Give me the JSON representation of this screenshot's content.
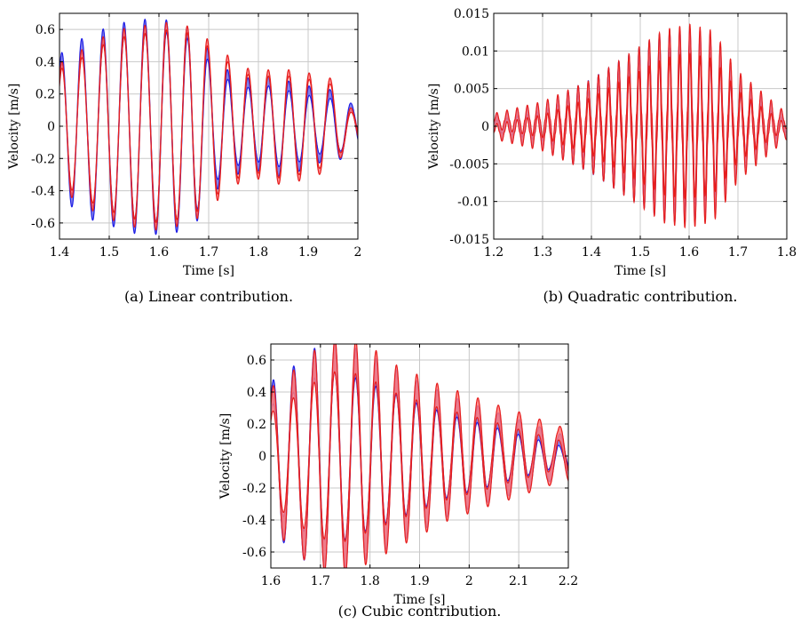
{
  "colors": {
    "blue": "#1f1fe6",
    "blue_fill": "#6f6fe8",
    "red": "#e61f1f",
    "red_fill": "#ff7a7a"
  },
  "chart_data": [
    {
      "type": "area",
      "caption": "(a) Linear contribution.",
      "xlabel": "Time [s]",
      "ylabel": "Velocity [m/s]",
      "xlim": [
        1.4,
        2.0
      ],
      "ylim": [
        -0.7,
        0.7
      ],
      "xticks": [
        1.4,
        1.5,
        1.6,
        1.7,
        1.8,
        1.9,
        2.0
      ],
      "xtick_labels": [
        "1.4",
        "1.5",
        "1.6",
        "1.7",
        "1.8",
        "1.9",
        "2"
      ],
      "yticks": [
        -0.6,
        -0.4,
        -0.2,
        0,
        0.2,
        0.4,
        0.6
      ],
      "ytick_labels": [
        "-0.6",
        "-0.4",
        "-0.2",
        "0",
        "0.2",
        "0.4",
        "0.6"
      ],
      "grid": true,
      "series": [
        {
          "color": "blue",
          "peaks": [
            [
              1.405,
              0.42
            ],
            [
              1.445,
              0.5
            ],
            [
              1.488,
              0.56
            ],
            [
              1.53,
              0.6
            ],
            [
              1.572,
              0.62
            ],
            [
              1.615,
              0.62
            ],
            [
              1.657,
              0.58
            ],
            [
              1.697,
              0.45
            ],
            [
              1.738,
              0.32
            ],
            [
              1.779,
              0.27
            ],
            [
              1.82,
              0.28
            ],
            [
              1.861,
              0.25
            ],
            [
              1.902,
              0.22
            ],
            [
              1.944,
              0.2
            ],
            [
              1.986,
              0.12
            ]
          ],
          "troughs": [
            [
              1.425,
              -0.46
            ],
            [
              1.467,
              -0.54
            ],
            [
              1.509,
              -0.58
            ],
            [
              1.551,
              -0.62
            ],
            [
              1.594,
              -0.63
            ],
            [
              1.636,
              -0.62
            ],
            [
              1.677,
              -0.55
            ],
            [
              1.718,
              -0.36
            ],
            [
              1.759,
              -0.27
            ],
            [
              1.8,
              -0.25
            ],
            [
              1.841,
              -0.28
            ],
            [
              1.882,
              -0.25
            ],
            [
              1.923,
              -0.2
            ],
            [
              1.965,
              -0.18
            ]
          ],
          "band": 0.1
        },
        {
          "color": "red",
          "peaks": [
            [
              1.405,
              0.38
            ],
            [
              1.445,
              0.45
            ],
            [
              1.488,
              0.53
            ],
            [
              1.53,
              0.58
            ],
            [
              1.572,
              0.6
            ],
            [
              1.615,
              0.62
            ],
            [
              1.657,
              0.6
            ],
            [
              1.697,
              0.52
            ],
            [
              1.738,
              0.42
            ],
            [
              1.779,
              0.34
            ],
            [
              1.82,
              0.33
            ],
            [
              1.861,
              0.33
            ],
            [
              1.902,
              0.31
            ],
            [
              1.944,
              0.28
            ],
            [
              1.986,
              0.1
            ]
          ],
          "troughs": [
            [
              1.425,
              -0.42
            ],
            [
              1.467,
              -0.5
            ],
            [
              1.509,
              -0.56
            ],
            [
              1.551,
              -0.6
            ],
            [
              1.594,
              -0.62
            ],
            [
              1.636,
              -0.6
            ],
            [
              1.677,
              -0.55
            ],
            [
              1.718,
              -0.44
            ],
            [
              1.759,
              -0.34
            ],
            [
              1.8,
              -0.31
            ],
            [
              1.841,
              -0.34
            ],
            [
              1.882,
              -0.32
            ],
            [
              1.923,
              -0.28
            ],
            [
              1.965,
              -0.18
            ]
          ],
          "band": 0.06
        }
      ]
    },
    {
      "type": "area",
      "caption": "(b) Quadratic contribution.",
      "xlabel": "Time [s]",
      "ylabel": "Velocity [m/s]",
      "xlim": [
        1.2,
        1.8
      ],
      "ylim": [
        -0.015,
        0.015
      ],
      "xticks": [
        1.2,
        1.3,
        1.4,
        1.5,
        1.6,
        1.7,
        1.8
      ],
      "xtick_labels": [
        "1.2",
        "1.3",
        "1.4",
        "1.5",
        "1.6",
        "1.7",
        "1.8"
      ],
      "yticks": [
        -0.015,
        -0.01,
        -0.005,
        0,
        0.005,
        0.01,
        0.015
      ],
      "ytick_labels": [
        "-0.015",
        "-0.01",
        "-0.005",
        "0",
        "0.005",
        "0.01",
        "0.015"
      ],
      "grid": true,
      "series": [
        {
          "color": "blue",
          "envelope_points": [
            [
              1.2,
              0.0012
            ],
            [
              1.3,
              0.0025
            ],
            [
              1.4,
              0.0055
            ],
            [
              1.5,
              0.0095
            ],
            [
              1.55,
              0.0115
            ],
            [
              1.6,
              0.0118
            ],
            [
              1.65,
              0.0105
            ],
            [
              1.7,
              0.0055
            ],
            [
              1.8,
              0.0012
            ]
          ],
          "period": 0.0208,
          "band": 0.0012
        },
        {
          "color": "red",
          "envelope_points": [
            [
              1.2,
              0.001
            ],
            [
              1.3,
              0.0024
            ],
            [
              1.4,
              0.005
            ],
            [
              1.5,
              0.009
            ],
            [
              1.55,
              0.011
            ],
            [
              1.6,
              0.0116
            ],
            [
              1.65,
              0.0108
            ],
            [
              1.7,
              0.006
            ],
            [
              1.8,
              0.001
            ]
          ],
          "period": 0.0208,
          "band": 0.002
        }
      ]
    },
    {
      "type": "area",
      "caption": "(c) Cubic contribution.",
      "xlabel": "Time [s]",
      "ylabel": "Velocity [m/s]",
      "xlim": [
        1.6,
        2.2
      ],
      "ylim": [
        -0.7,
        0.7
      ],
      "xticks": [
        1.6,
        1.7,
        1.8,
        1.9,
        2.0,
        2.1,
        2.2
      ],
      "xtick_labels": [
        "1.6",
        "1.7",
        "1.8",
        "1.9",
        "2",
        "2.1",
        "2.2"
      ],
      "yticks": [
        -0.6,
        -0.4,
        -0.2,
        0,
        0.2,
        0.4,
        0.6
      ],
      "ytick_labels": [
        "-0.6",
        "-0.4",
        "-0.2",
        "0",
        "0.2",
        "0.4",
        "0.6"
      ],
      "grid": true,
      "series": [
        {
          "color": "blue",
          "peaks": [
            [
              1.605,
              0.4
            ],
            [
              1.646,
              0.48
            ],
            [
              1.688,
              0.58
            ],
            [
              1.729,
              0.62
            ],
            [
              1.771,
              0.58
            ],
            [
              1.812,
              0.52
            ],
            [
              1.853,
              0.46
            ],
            [
              1.894,
              0.4
            ],
            [
              1.935,
              0.35
            ],
            [
              1.976,
              0.3
            ],
            [
              2.017,
              0.26
            ],
            [
              2.058,
              0.22
            ],
            [
              2.1,
              0.18
            ],
            [
              2.141,
              0.14
            ],
            [
              2.182,
              0.1
            ]
          ],
          "troughs": [
            [
              1.626,
              -0.46
            ],
            [
              1.667,
              -0.56
            ],
            [
              1.708,
              -0.62
            ],
            [
              1.75,
              -0.62
            ],
            [
              1.791,
              -0.56
            ],
            [
              1.832,
              -0.5
            ],
            [
              1.873,
              -0.44
            ],
            [
              1.914,
              -0.38
            ],
            [
              1.955,
              -0.32
            ],
            [
              1.996,
              -0.28
            ],
            [
              2.037,
              -0.24
            ],
            [
              2.079,
              -0.2
            ],
            [
              2.12,
              -0.16
            ],
            [
              2.161,
              -0.12
            ]
          ],
          "band": 0.2
        },
        {
          "color": "red",
          "peaks": [
            [
              1.605,
              0.36
            ],
            [
              1.646,
              0.45
            ],
            [
              1.688,
              0.56
            ],
            [
              1.729,
              0.63
            ],
            [
              1.771,
              0.62
            ],
            [
              1.812,
              0.56
            ],
            [
              1.853,
              0.48
            ],
            [
              1.894,
              0.43
            ],
            [
              1.935,
              0.38
            ],
            [
              1.976,
              0.34
            ],
            [
              2.017,
              0.3
            ],
            [
              2.058,
              0.26
            ],
            [
              2.1,
              0.22
            ],
            [
              2.141,
              0.18
            ],
            [
              2.182,
              0.14
            ]
          ],
          "troughs": [
            [
              1.626,
              -0.44
            ],
            [
              1.667,
              -0.55
            ],
            [
              1.708,
              -0.62
            ],
            [
              1.75,
              -0.64
            ],
            [
              1.791,
              -0.58
            ],
            [
              1.832,
              -0.52
            ],
            [
              1.873,
              -0.46
            ],
            [
              1.914,
              -0.4
            ],
            [
              1.955,
              -0.34
            ],
            [
              1.996,
              -0.3
            ],
            [
              2.037,
              -0.26
            ],
            [
              2.079,
              -0.22
            ],
            [
              2.12,
              -0.18
            ],
            [
              2.161,
              -0.14
            ]
          ],
          "band": 0.22
        }
      ]
    }
  ]
}
